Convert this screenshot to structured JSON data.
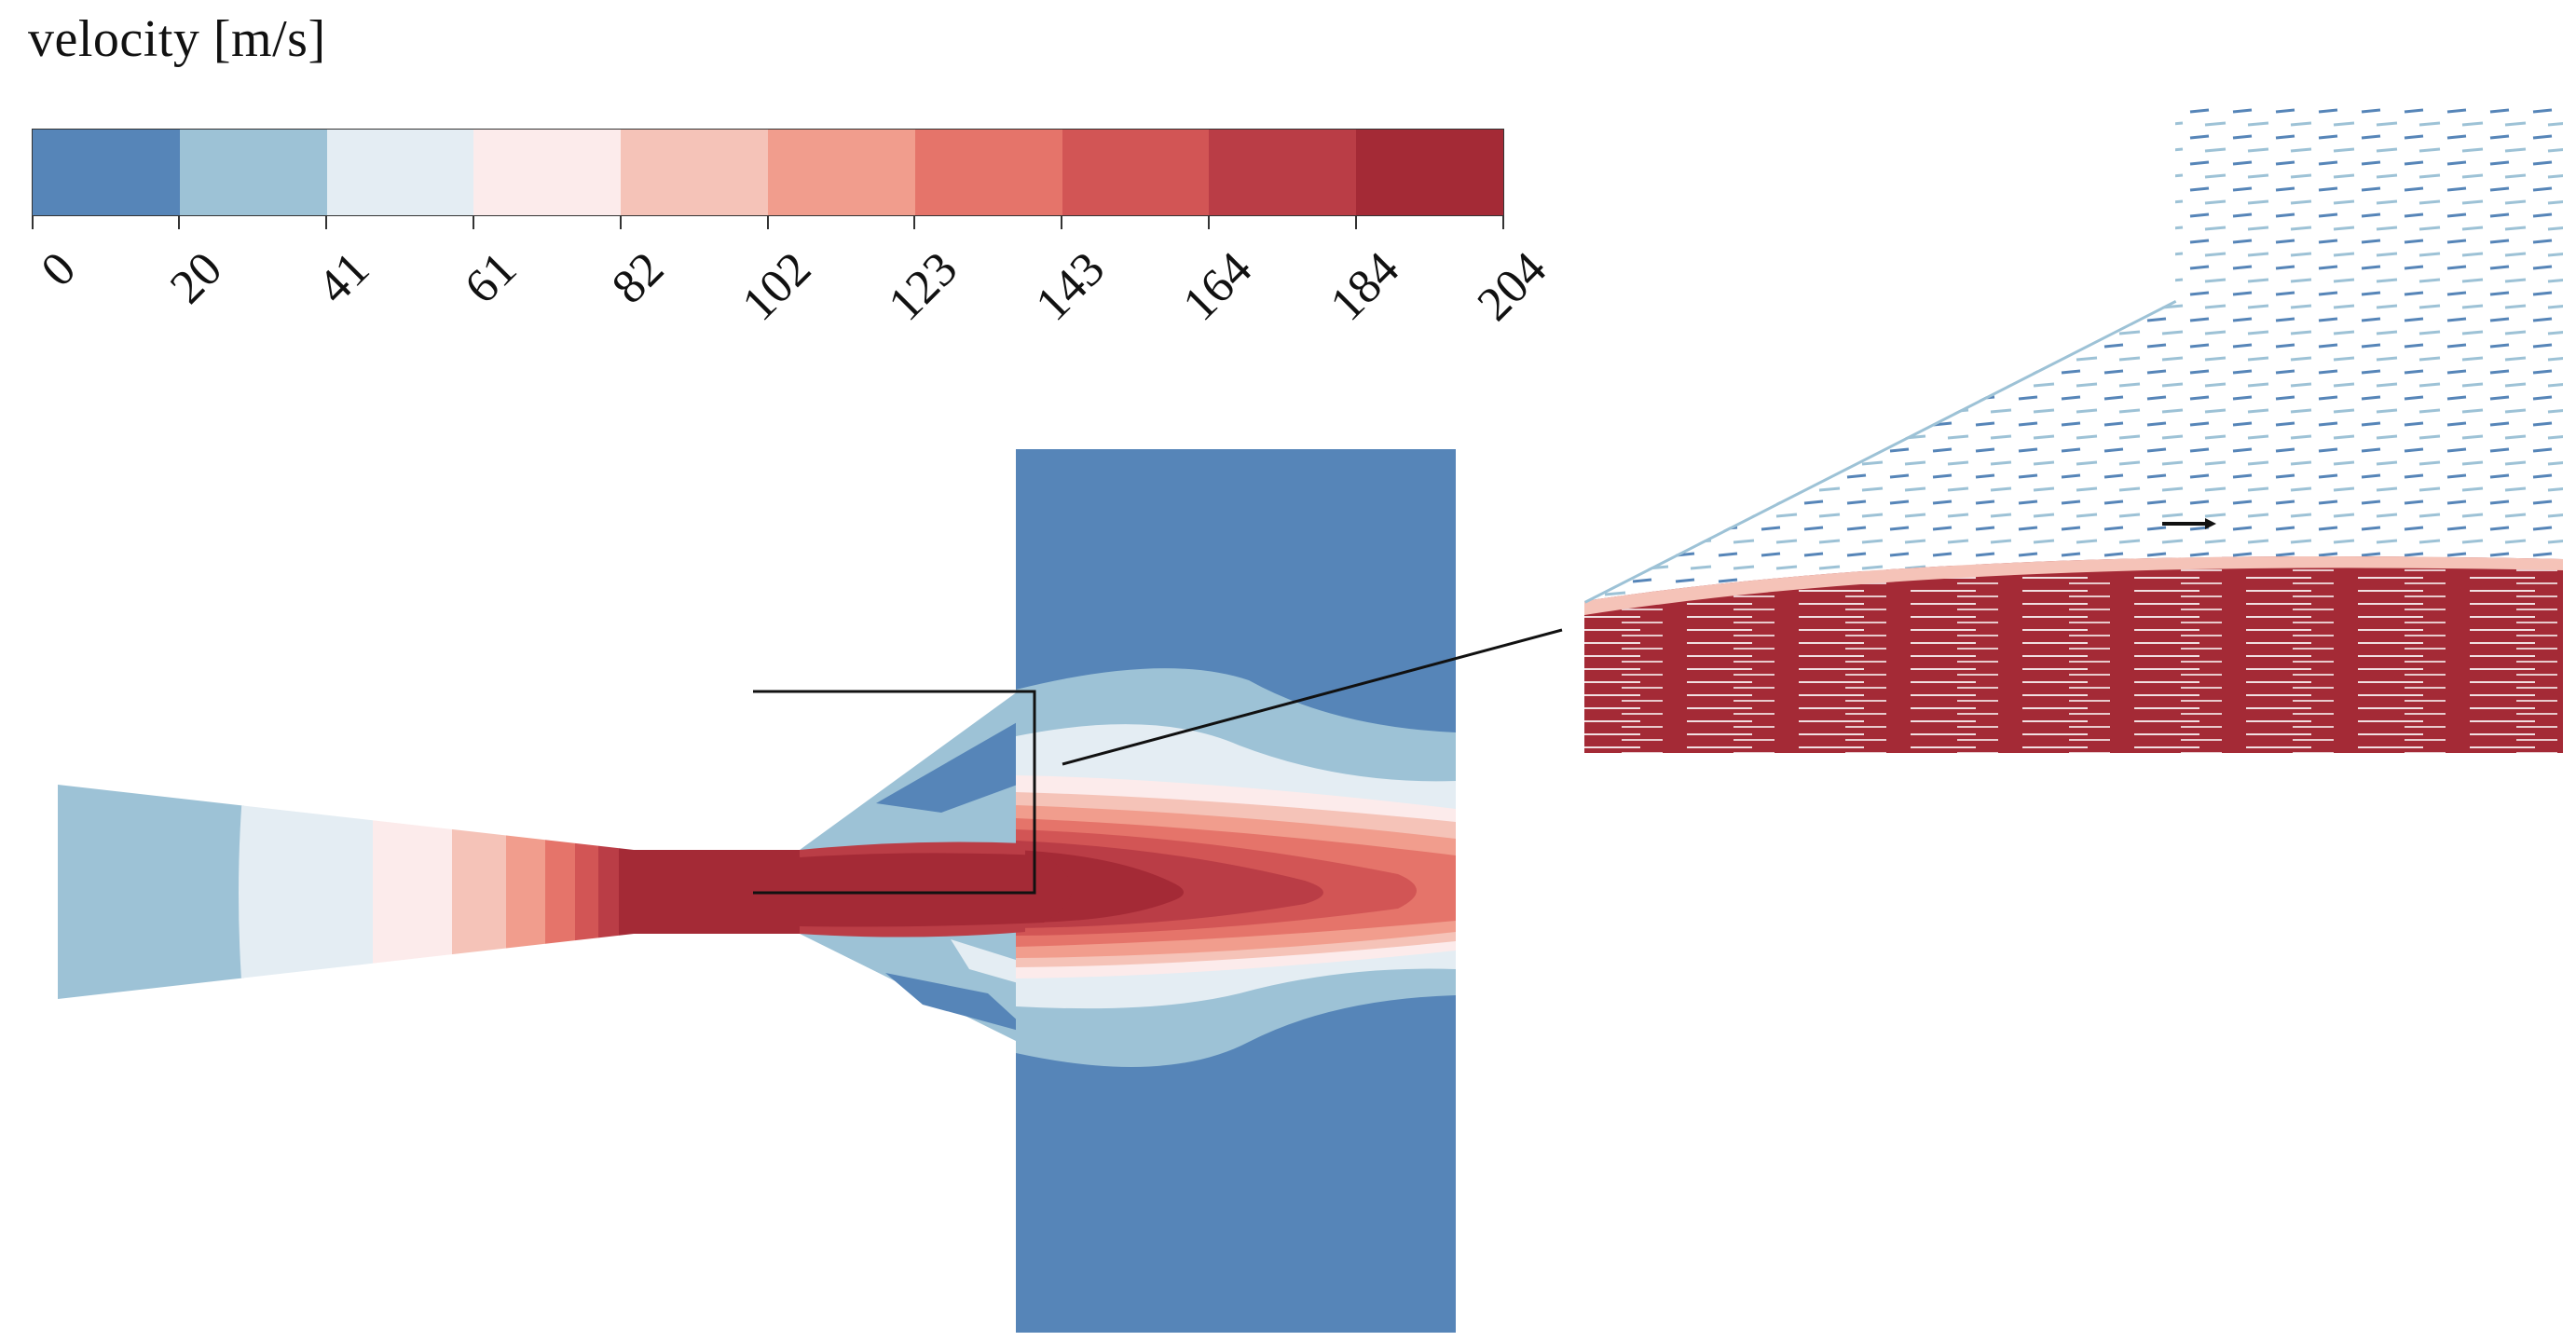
{
  "legend": {
    "title": "velocity [m/s]",
    "tick_labels": [
      "0",
      "20",
      "41",
      "61",
      "82",
      "102",
      "123",
      "143",
      "164",
      "184",
      "204"
    ],
    "colors": [
      "#5685b8",
      "#9dc2d6",
      "#e4edf3",
      "#fcebeb",
      "#f5c3b8",
      "#f19d8d",
      "#e5746a",
      "#d25555",
      "#ba3d46",
      "#a42a36"
    ]
  },
  "palette": {
    "bg": "#ffffff",
    "line": "#111111"
  }
}
